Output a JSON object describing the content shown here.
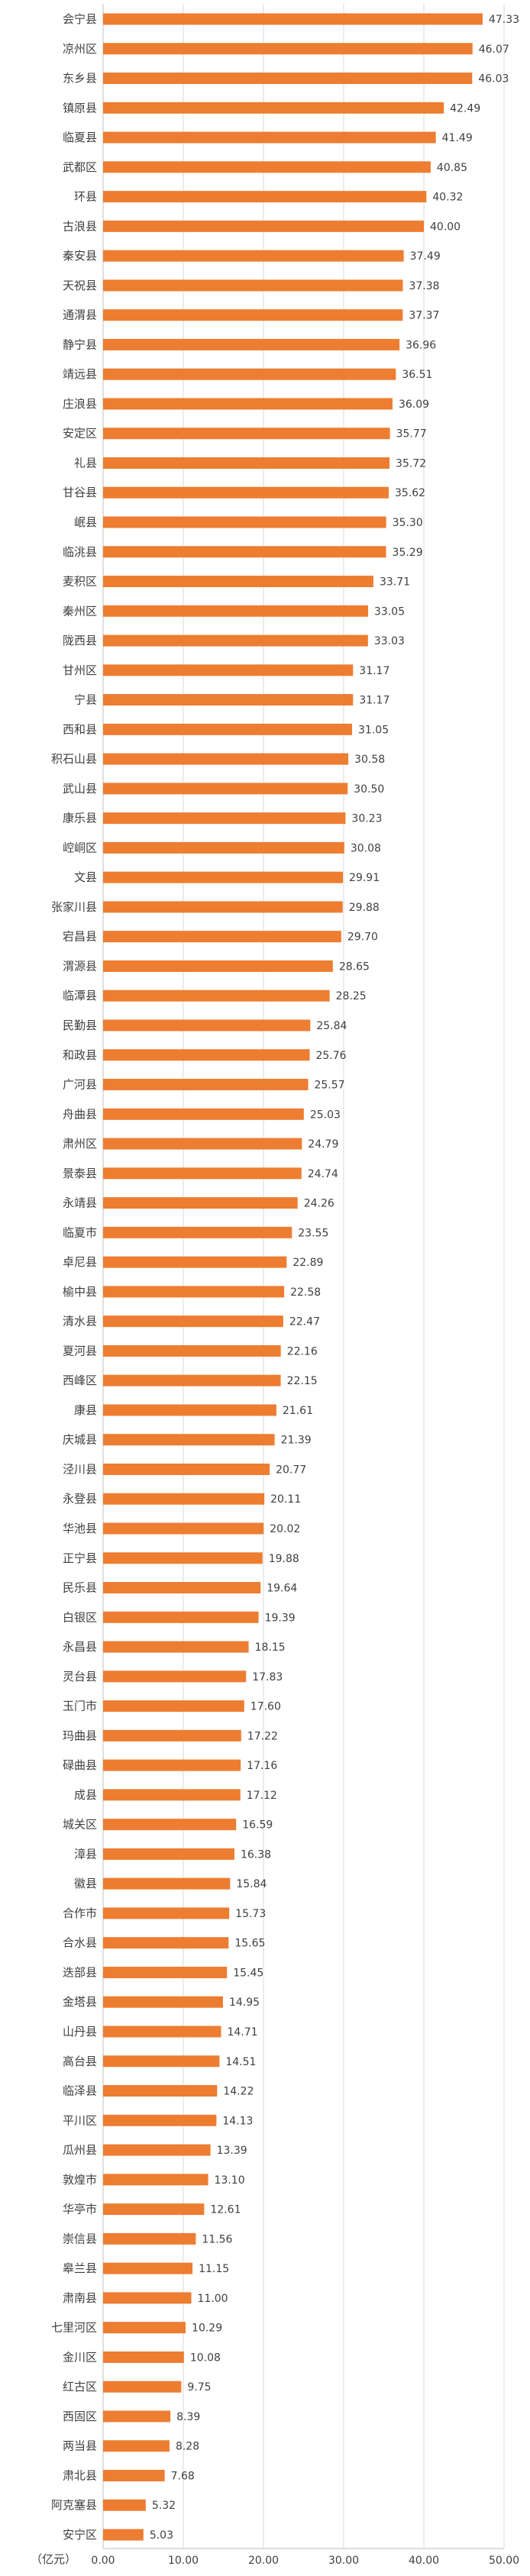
{
  "chart_data": {
    "type": "bar",
    "orientation": "horizontal",
    "unit_label": "（亿元）",
    "xlim": [
      0,
      50
    ],
    "x_ticks": [
      "0.00",
      "10.00",
      "20.00",
      "30.00",
      "40.00",
      "50.00"
    ],
    "grid": true,
    "bar_color": "#ED7D31",
    "categories": [
      "会宁县",
      "凉州区",
      "东乡县",
      "镇原县",
      "临夏县",
      "武都区",
      "环县",
      "古浪县",
      "秦安县",
      "天祝县",
      "通渭县",
      "静宁县",
      "靖远县",
      "庄浪县",
      "安定区",
      "礼县",
      "甘谷县",
      "岷县",
      "临洮县",
      "麦积区",
      "秦州区",
      "陇西县",
      "甘州区",
      "宁县",
      "西和县",
      "积石山县",
      "武山县",
      "康乐县",
      "崆峒区",
      "文县",
      "张家川县",
      "宕昌县",
      "渭源县",
      "临潭县",
      "民勤县",
      "和政县",
      "广河县",
      "舟曲县",
      "肃州区",
      "景泰县",
      "永靖县",
      "临夏市",
      "卓尼县",
      "榆中县",
      "清水县",
      "夏河县",
      "西峰区",
      "康县",
      "庆城县",
      "泾川县",
      "永登县",
      "华池县",
      "正宁县",
      "民乐县",
      "白银区",
      "永昌县",
      "灵台县",
      "玉门市",
      "玛曲县",
      "碌曲县",
      "成县",
      "城关区",
      "漳县",
      "徽县",
      "合作市",
      "合水县",
      "迭部县",
      "金塔县",
      "山丹县",
      "高台县",
      "临泽县",
      "平川区",
      "瓜州县",
      "敦煌市",
      "华亭市",
      "崇信县",
      "皋兰县",
      "肃南县",
      "七里河区",
      "金川区",
      "红古区",
      "西固区",
      "两当县",
      "肃北县",
      "阿克塞县",
      "安宁区"
    ],
    "values": [
      47.33,
      46.07,
      46.03,
      42.49,
      41.49,
      40.85,
      40.32,
      40.0,
      37.49,
      37.38,
      37.37,
      36.96,
      36.51,
      36.09,
      35.77,
      35.72,
      35.62,
      35.3,
      35.29,
      33.71,
      33.05,
      33.03,
      31.17,
      31.17,
      31.05,
      30.58,
      30.5,
      30.23,
      30.08,
      29.91,
      29.88,
      29.7,
      28.65,
      28.25,
      25.84,
      25.76,
      25.57,
      25.03,
      24.79,
      24.74,
      24.26,
      23.55,
      22.89,
      22.58,
      22.47,
      22.16,
      22.15,
      21.61,
      21.39,
      20.77,
      20.11,
      20.02,
      19.88,
      19.64,
      19.39,
      18.15,
      17.83,
      17.6,
      17.22,
      17.16,
      17.12,
      16.59,
      16.38,
      15.84,
      15.73,
      15.65,
      15.45,
      14.95,
      14.71,
      14.51,
      14.22,
      14.13,
      13.39,
      13.1,
      12.61,
      11.56,
      11.15,
      11.0,
      10.29,
      10.08,
      9.75,
      8.39,
      8.28,
      7.68,
      5.32,
      5.03
    ],
    "value_labels": [
      "47.33",
      "46.07",
      "46.03",
      "42.49",
      "41.49",
      "40.85",
      "40.32",
      "40.00",
      "37.49",
      "37.38",
      "37.37",
      "36.96",
      "36.51",
      "36.09",
      "35.77",
      "35.72",
      "35.62",
      "35.30",
      "35.29",
      "33.71",
      "33.05",
      "33.03",
      "31.17",
      "31.17",
      "31.05",
      "30.58",
      "30.50",
      "30.23",
      "30.08",
      "29.91",
      "29.88",
      "29.70",
      "28.65",
      "28.25",
      "25.84",
      "25.76",
      "25.57",
      "25.03",
      "24.79",
      "24.74",
      "24.26",
      "23.55",
      "22.89",
      "22.58",
      "22.47",
      "22.16",
      "22.15",
      "21.61",
      "21.39",
      "20.77",
      "20.11",
      "20.02",
      "19.88",
      "19.64",
      "19.39",
      "18.15",
      "17.83",
      "17.60",
      "17.22",
      "17.16",
      "17.12",
      "16.59",
      "16.38",
      "15.84",
      "15.73",
      "15.65",
      "15.45",
      "14.95",
      "14.71",
      "14.51",
      "14.22",
      "14.13",
      "13.39",
      "13.10",
      "12.61",
      "11.56",
      "11.15",
      "11.00",
      "10.29",
      "10.08",
      "9.75",
      "8.39",
      "8.28",
      "7.68",
      "5.32",
      "5.03"
    ]
  }
}
